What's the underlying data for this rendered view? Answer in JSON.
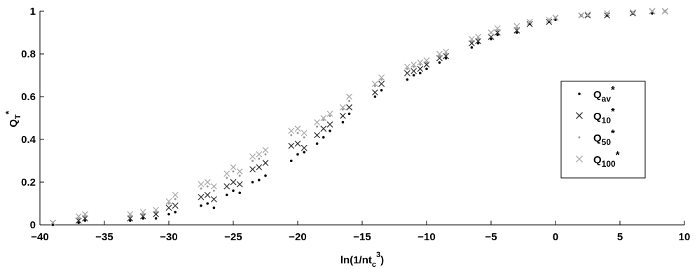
{
  "chart_data": {
    "type": "scatter",
    "xlabel": {
      "text": "ln(1/nt",
      "sub": "c",
      "sup": "3",
      "end": ")"
    },
    "ylabel": {
      "text": "Q",
      "sub": "T",
      "sup": "*"
    },
    "xlim": [
      -40,
      10
    ],
    "xticks": [
      {
        "value": -40,
        "label": "−40"
      },
      {
        "value": -35,
        "label": "−35"
      },
      {
        "value": -30,
        "label": "−30"
      },
      {
        "value": -25,
        "label": "−25"
      },
      {
        "value": -20,
        "label": "−20"
      },
      {
        "value": -15,
        "label": "−15"
      },
      {
        "value": -10,
        "label": "−10"
      },
      {
        "value": -5,
        "label": "−5"
      },
      0,
      5,
      10
    ],
    "ylim": [
      0,
      1
    ],
    "yticks": [
      0,
      0.2,
      0.4,
      0.6,
      0.8,
      1
    ],
    "legend": "right",
    "x": [
      -39,
      -37,
      -36.5,
      -33,
      -32,
      -31,
      -30,
      -29.5,
      -27.5,
      -27,
      -26.5,
      -25.5,
      -25,
      -24.5,
      -23.5,
      -23,
      -22.5,
      -20.5,
      -20,
      -19.5,
      -18.5,
      -18,
      -17.5,
      -16.5,
      -16,
      -14,
      -13.5,
      -11.5,
      -11,
      -10.5,
      -10,
      -9,
      -8.5,
      -6.5,
      -6,
      -5,
      -4.5,
      -3,
      -2,
      -0.5,
      0,
      2,
      2.5,
      4,
      6,
      7.5,
      8.5
    ],
    "series": [
      {
        "name": "Q",
        "name_sub": "av",
        "name_sup": "*",
        "color": "#000000",
        "marker": "dot",
        "values": [
          0.0,
          0.01,
          0.02,
          0.02,
          0.03,
          0.03,
          0.05,
          0.06,
          0.09,
          0.1,
          0.08,
          0.14,
          0.16,
          0.15,
          0.2,
          0.21,
          0.23,
          0.3,
          0.33,
          0.34,
          0.38,
          0.41,
          0.44,
          0.48,
          0.52,
          0.6,
          0.63,
          0.68,
          0.7,
          0.71,
          0.73,
          0.76,
          0.78,
          0.83,
          0.85,
          0.87,
          0.89,
          0.9,
          0.94,
          0.95,
          0.96,
          0.98,
          0.98,
          0.98,
          0.99,
          0.99,
          1
        ]
      },
      {
        "name": "Q",
        "name_sub": "10",
        "name_sup": "*",
        "color": "#333333",
        "marker": "x",
        "values": [
          0.01,
          0.02,
          0.03,
          0.03,
          0.04,
          0.05,
          0.08,
          0.09,
          0.13,
          0.14,
          0.12,
          0.18,
          0.2,
          0.19,
          0.26,
          0.27,
          0.29,
          0.37,
          0.38,
          0.36,
          0.42,
          0.45,
          0.47,
          0.51,
          0.55,
          0.62,
          0.66,
          0.71,
          0.72,
          0.73,
          0.75,
          0.78,
          0.79,
          0.85,
          0.86,
          0.88,
          0.9,
          0.91,
          0.94,
          0.95,
          0.97,
          0.98,
          0.98,
          0.98,
          0.99,
          1,
          1
        ]
      },
      {
        "name": "Q",
        "name_sub": "50",
        "name_sup": "*",
        "color": "#999999",
        "marker": "dot",
        "values": [
          0.01,
          0.03,
          0.04,
          0.04,
          0.05,
          0.06,
          0.1,
          0.12,
          0.17,
          0.18,
          0.16,
          0.22,
          0.25,
          0.23,
          0.3,
          0.31,
          0.33,
          0.42,
          0.43,
          0.41,
          0.46,
          0.49,
          0.51,
          0.54,
          0.58,
          0.65,
          0.68,
          0.73,
          0.74,
          0.75,
          0.76,
          0.79,
          0.8,
          0.86,
          0.87,
          0.9,
          0.91,
          0.92,
          0.95,
          0.96,
          0.97,
          0.98,
          0.98,
          0.99,
          0.995,
          1,
          1
        ]
      },
      {
        "name": "Q",
        "name_sub": "100",
        "name_sup": "*",
        "color": "#aaaaaa",
        "marker": "x",
        "values": [
          0.01,
          0.04,
          0.05,
          0.05,
          0.06,
          0.07,
          0.11,
          0.14,
          0.19,
          0.2,
          0.18,
          0.24,
          0.27,
          0.25,
          0.32,
          0.33,
          0.35,
          0.44,
          0.45,
          0.43,
          0.48,
          0.5,
          0.52,
          0.55,
          0.6,
          0.66,
          0.69,
          0.74,
          0.75,
          0.76,
          0.77,
          0.8,
          0.81,
          0.87,
          0.88,
          0.9,
          0.92,
          0.93,
          0.95,
          0.96,
          0.97,
          0.98,
          0.985,
          0.99,
          0.995,
          1,
          1
        ]
      }
    ]
  }
}
